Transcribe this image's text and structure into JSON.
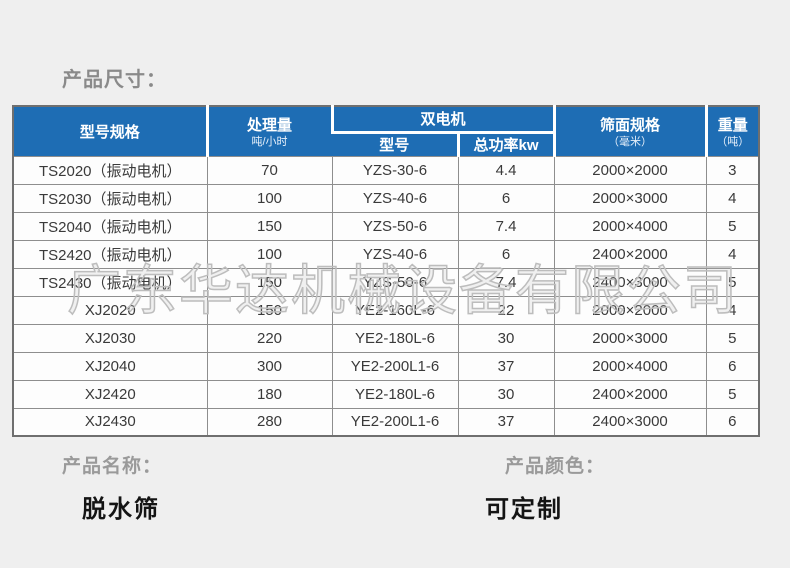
{
  "title": "产品尺寸：",
  "colors": {
    "header_bg": "#1e6db4",
    "page_bg": "#efefef",
    "watermark_gray": "#bdbdbd"
  },
  "table": {
    "header": {
      "model": "型号规格",
      "capacity": "处理量",
      "capacity_unit": "吨/小时",
      "dual_motor": "双电机",
      "motor_model": "型号",
      "motor_power": "总功率kw",
      "screen_size": "筛面规格",
      "screen_size_unit": "（毫米）",
      "weight": "重量",
      "weight_unit": "（吨）"
    },
    "rows": [
      [
        "TS2020（振动电机）",
        "70",
        "YZS-30-6",
        "4.4",
        "2000×2000",
        "3"
      ],
      [
        "TS2030（振动电机）",
        "100",
        "YZS-40-6",
        "6",
        "2000×3000",
        "4"
      ],
      [
        "TS2040（振动电机）",
        "150",
        "YZS-50-6",
        "7.4",
        "2000×4000",
        "5"
      ],
      [
        "TS2420（振动电机）",
        "100",
        "YZS-40-6",
        "6",
        "2400×2000",
        "4"
      ],
      [
        "TS2430（振动电机）",
        "150",
        "YZS-50-6",
        "7.4",
        "2400×3000",
        "5"
      ],
      [
        "XJ2020",
        "150",
        "YE2-160L-6",
        "22",
        "2000×2000",
        "4"
      ],
      [
        "XJ2030",
        "220",
        "YE2-180L-6",
        "30",
        "2000×3000",
        "5"
      ],
      [
        "XJ2040",
        "300",
        "YE2-200L1-6",
        "37",
        "2000×4000",
        "6"
      ],
      [
        "XJ2420",
        "180",
        "YE2-180L-6",
        "30",
        "2400×2000",
        "5"
      ],
      [
        "XJ2430",
        "280",
        "YE2-200L1-6",
        "37",
        "2400×3000",
        "6"
      ]
    ]
  },
  "watermark": "广东华达机械设备有限公司",
  "footer": {
    "name_label": "产品名称：",
    "name_value": "脱水筛",
    "color_label": "产品颜色：",
    "color_value": "可定制"
  }
}
